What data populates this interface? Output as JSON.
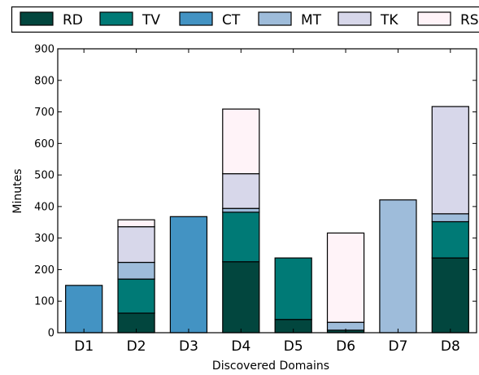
{
  "chart_data": {
    "type": "bar",
    "stacked": true,
    "title": "",
    "xlabel": "Discovered Domains",
    "ylabel": "Minutes",
    "ylim": [
      0,
      900
    ],
    "yticks": [
      0,
      100,
      200,
      300,
      400,
      500,
      600,
      700,
      800,
      900
    ],
    "categories": [
      "D1",
      "D2",
      "D3",
      "D4",
      "D5",
      "D6",
      "D7",
      "D8"
    ],
    "legend_placement": "top",
    "grid": false,
    "series": [
      {
        "name": "RD",
        "color": "#02463e",
        "values": [
          0,
          62,
          0,
          225,
          42,
          8,
          0,
          237
        ]
      },
      {
        "name": "TV",
        "color": "#007a76",
        "values": [
          0,
          108,
          0,
          157,
          195,
          0,
          0,
          115
        ]
      },
      {
        "name": "CT",
        "color": "#4393c3",
        "values": [
          150,
          0,
          368,
          0,
          0,
          0,
          0,
          0
        ]
      },
      {
        "name": "MT",
        "color": "#9ebcda",
        "values": [
          0,
          53,
          0,
          12,
          0,
          25,
          421,
          25
        ]
      },
      {
        "name": "TK",
        "color": "#d7d7ea",
        "values": [
          0,
          113,
          0,
          110,
          0,
          0,
          0,
          340
        ]
      },
      {
        "name": "RS",
        "color": "#fff3f8",
        "values": [
          0,
          22,
          0,
          205,
          0,
          283,
          0,
          0
        ]
      }
    ]
  }
}
